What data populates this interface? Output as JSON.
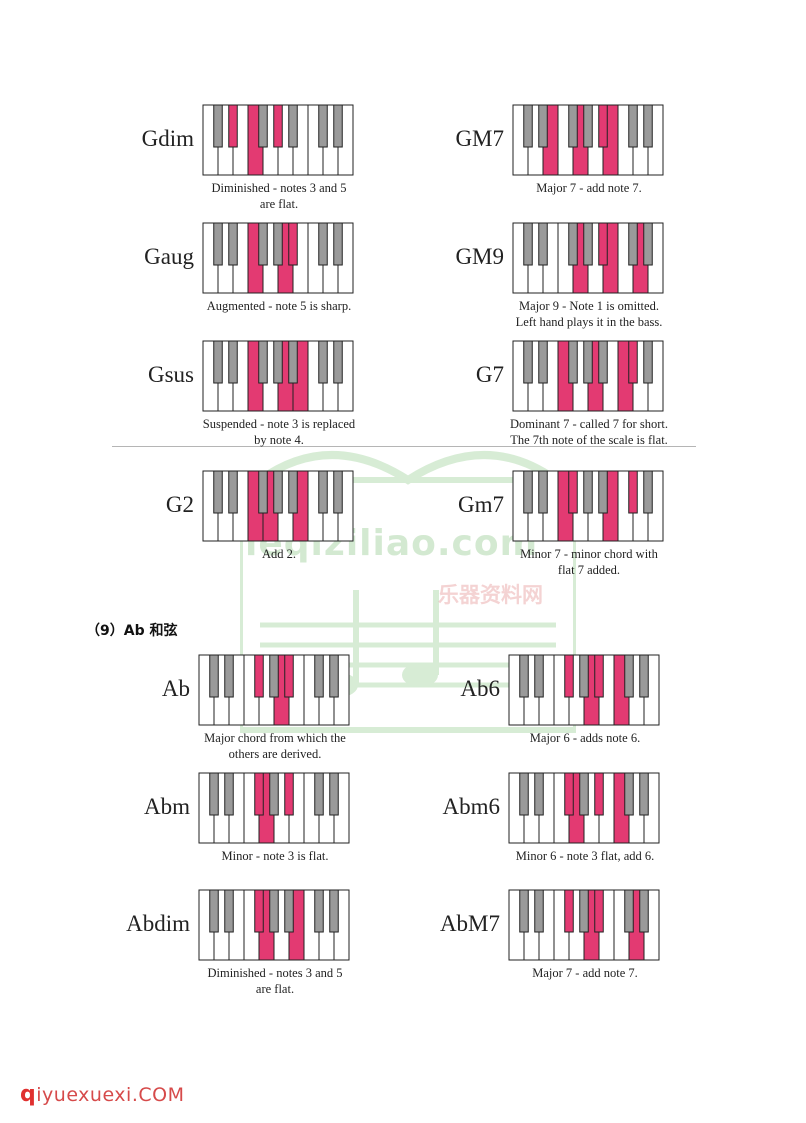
{
  "section_heading": "（9）Ab 和弦",
  "watermark": {
    "text": "leqiziliao.com",
    "sub": "乐器资料网"
  },
  "footer": {
    "logo_q": "q",
    "logo_rest": "iyuexuexi.COM"
  },
  "colors": {
    "highlight": "#e33a72",
    "black_key": "#9a9a9a",
    "key_border": "#222222"
  },
  "chords": [
    {
      "name": "Gdim",
      "caption": [
        "Diminished - notes 3 and 5",
        "are flat."
      ],
      "highlights": [
        {
          "t": "b",
          "i": 1
        },
        {
          "t": "w",
          "i": 3
        },
        {
          "t": "b",
          "i": 3
        }
      ]
    },
    {
      "name": "GM7",
      "caption": [
        "Major 7 - add note 7."
      ],
      "highlights": [
        {
          "t": "w",
          "i": 2
        },
        {
          "t": "w",
          "i": 4
        },
        {
          "t": "w",
          "i": 6
        },
        {
          "t": "b",
          "i": 4
        }
      ]
    },
    {
      "name": "Gaug",
      "caption": [
        "Augmented - note 5 is sharp."
      ],
      "highlights": [
        {
          "t": "w",
          "i": 3
        },
        {
          "t": "w",
          "i": 5
        },
        {
          "t": "b",
          "i": 4
        }
      ]
    },
    {
      "name": "GM9",
      "caption": [
        "Major 9 - Note 1 is omitted.",
        "Left hand plays it in the bass."
      ],
      "highlights": [
        {
          "t": "w",
          "i": 4
        },
        {
          "t": "w",
          "i": 6
        },
        {
          "t": "w",
          "i": 8
        },
        {
          "t": "b",
          "i": 4
        }
      ]
    },
    {
      "name": "Gsus",
      "caption": [
        "Suspended - note 3 is replaced",
        "by note 4."
      ],
      "highlights": [
        {
          "t": "w",
          "i": 3
        },
        {
          "t": "w",
          "i": 5
        },
        {
          "t": "w",
          "i": 6
        }
      ]
    },
    {
      "name": "G7",
      "caption": [
        "Dominant 7 - called 7 for short.",
        "The 7th note of the scale is flat."
      ],
      "highlights": [
        {
          "t": "w",
          "i": 3
        },
        {
          "t": "w",
          "i": 5
        },
        {
          "t": "w",
          "i": 7
        },
        {
          "t": "b",
          "i": 5
        }
      ]
    },
    {
      "name": "G2",
      "caption": [
        "Add 2."
      ],
      "highlights": [
        {
          "t": "w",
          "i": 3
        },
        {
          "t": "w",
          "i": 4
        },
        {
          "t": "w",
          "i": 6
        }
      ]
    },
    {
      "name": "Gm7",
      "caption": [
        "Minor 7 - minor chord with",
        "flat 7 added."
      ],
      "highlights": [
        {
          "t": "w",
          "i": 3
        },
        {
          "t": "b",
          "i": 2
        },
        {
          "t": "w",
          "i": 6
        },
        {
          "t": "b",
          "i": 5
        }
      ]
    },
    {
      "name": "Ab",
      "caption": [
        "Major chord from which the",
        "others are derived."
      ],
      "highlights": [
        {
          "t": "b",
          "i": 2
        },
        {
          "t": "w",
          "i": 5
        },
        {
          "t": "b",
          "i": 4
        }
      ]
    },
    {
      "name": "Ab6",
      "caption": [
        "Major 6 - adds note 6."
      ],
      "highlights": [
        {
          "t": "b",
          "i": 2
        },
        {
          "t": "w",
          "i": 5
        },
        {
          "t": "b",
          "i": 4
        },
        {
          "t": "w",
          "i": 7
        }
      ]
    },
    {
      "name": "Abm",
      "caption": [
        "Minor - note 3 is flat."
      ],
      "highlights": [
        {
          "t": "b",
          "i": 2
        },
        {
          "t": "w",
          "i": 4
        },
        {
          "t": "b",
          "i": 4
        }
      ]
    },
    {
      "name": "Abm6",
      "caption": [
        "Minor 6 - note 3 flat, add 6."
      ],
      "highlights": [
        {
          "t": "b",
          "i": 2
        },
        {
          "t": "w",
          "i": 4
        },
        {
          "t": "b",
          "i": 4
        },
        {
          "t": "w",
          "i": 7
        }
      ]
    },
    {
      "name": "Abdim",
      "caption": [
        "Diminished - notes 3 and 5",
        "are flat."
      ],
      "highlights": [
        {
          "t": "b",
          "i": 2
        },
        {
          "t": "w",
          "i": 4
        },
        {
          "t": "w",
          "i": 6
        }
      ]
    },
    {
      "name": "AbM7",
      "caption": [
        "Major 7 - add note 7."
      ],
      "highlights": [
        {
          "t": "b",
          "i": 2
        },
        {
          "t": "w",
          "i": 5
        },
        {
          "t": "b",
          "i": 4
        },
        {
          "t": "w",
          "i": 8
        }
      ]
    }
  ]
}
